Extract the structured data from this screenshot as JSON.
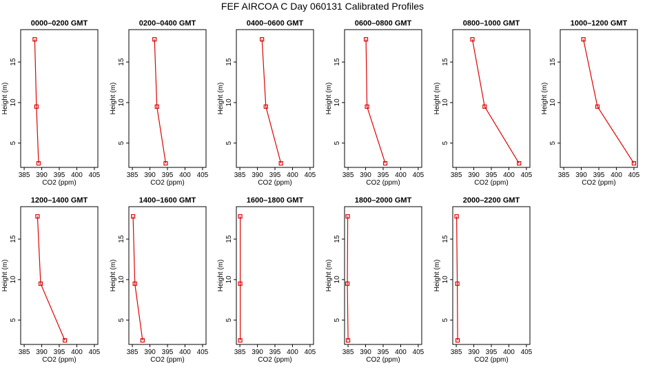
{
  "page": {
    "title": "FEF AIRCOA C  Day 060131  Calibrated Profiles"
  },
  "colors": {
    "series": "#dd0000",
    "axes": "#000000",
    "background": "#ffffff"
  },
  "chart_data": [
    {
      "type": "line",
      "title": "0000–0200 GMT",
      "xlabel": "CO2 (ppm)",
      "ylabel": "Height (m)",
      "xlim": [
        384,
        406
      ],
      "ylim": [
        2,
        19
      ],
      "xticks": [
        385,
        390,
        395,
        400,
        405
      ],
      "yticks": [
        5,
        10,
        15
      ],
      "points": [
        {
          "x": 388.0,
          "y": 17.8
        },
        {
          "x": 388.5,
          "y": 9.5
        },
        {
          "x": 389.1,
          "y": 2.5
        }
      ]
    },
    {
      "type": "line",
      "title": "0200–0400 GMT",
      "xlabel": "CO2 (ppm)",
      "ylabel": "Height (m)",
      "xlim": [
        384,
        406
      ],
      "ylim": [
        2,
        19
      ],
      "xticks": [
        385,
        390,
        395,
        400,
        405
      ],
      "yticks": [
        5,
        10,
        15
      ],
      "points": [
        {
          "x": 391.3,
          "y": 17.8
        },
        {
          "x": 392.0,
          "y": 9.5
        },
        {
          "x": 394.5,
          "y": 2.5
        }
      ]
    },
    {
      "type": "line",
      "title": "0400–0600 GMT",
      "xlabel": "CO2 (ppm)",
      "ylabel": "Height (m)",
      "xlim": [
        384,
        406
      ],
      "ylim": [
        2,
        19
      ],
      "xticks": [
        385,
        390,
        395,
        400,
        405
      ],
      "yticks": [
        5,
        10,
        15
      ],
      "points": [
        {
          "x": 391.3,
          "y": 17.8
        },
        {
          "x": 392.4,
          "y": 9.5
        },
        {
          "x": 396.7,
          "y": 2.5
        }
      ]
    },
    {
      "type": "line",
      "title": "0600–0800 GMT",
      "xlabel": "CO2 (ppm)",
      "ylabel": "Height (m)",
      "xlim": [
        384,
        406
      ],
      "ylim": [
        2,
        19
      ],
      "xticks": [
        385,
        390,
        395,
        400,
        405
      ],
      "yticks": [
        5,
        10,
        15
      ],
      "points": [
        {
          "x": 390.1,
          "y": 17.8
        },
        {
          "x": 390.4,
          "y": 9.5
        },
        {
          "x": 395.6,
          "y": 2.5
        }
      ]
    },
    {
      "type": "line",
      "title": "0800–1000 GMT",
      "xlabel": "CO2 (ppm)",
      "ylabel": "Height (m)",
      "xlim": [
        384,
        406
      ],
      "ylim": [
        2,
        19
      ],
      "xticks": [
        385,
        390,
        395,
        400,
        405
      ],
      "yticks": [
        5,
        10,
        15
      ],
      "points": [
        {
          "x": 389.6,
          "y": 17.8
        },
        {
          "x": 393.1,
          "y": 9.5
        },
        {
          "x": 402.9,
          "y": 2.5
        }
      ]
    },
    {
      "type": "line",
      "title": "1000–1200 GMT",
      "xlabel": "CO2 (ppm)",
      "ylabel": "Height (m)",
      "xlim": [
        384,
        406
      ],
      "ylim": [
        2,
        19
      ],
      "xticks": [
        385,
        390,
        395,
        400,
        405
      ],
      "yticks": [
        5,
        10,
        15
      ],
      "points": [
        {
          "x": 390.6,
          "y": 17.8
        },
        {
          "x": 394.6,
          "y": 9.5
        },
        {
          "x": 405.0,
          "y": 2.5
        }
      ]
    },
    {
      "type": "line",
      "title": "1200–1400 GMT",
      "xlabel": "CO2 (ppm)",
      "ylabel": "Height (m)",
      "xlim": [
        384,
        406
      ],
      "ylim": [
        2,
        19
      ],
      "xticks": [
        385,
        390,
        395,
        400,
        405
      ],
      "yticks": [
        5,
        10,
        15
      ],
      "points": [
        {
          "x": 388.8,
          "y": 17.8
        },
        {
          "x": 389.7,
          "y": 9.5
        },
        {
          "x": 396.6,
          "y": 2.5
        }
      ]
    },
    {
      "type": "line",
      "title": "1400–1600 GMT",
      "xlabel": "CO2 (ppm)",
      "ylabel": "Height (m)",
      "xlim": [
        384,
        406
      ],
      "ylim": [
        2,
        19
      ],
      "xticks": [
        385,
        390,
        395,
        400,
        405
      ],
      "yticks": [
        5,
        10,
        15
      ],
      "points": [
        {
          "x": 385.2,
          "y": 17.8
        },
        {
          "x": 385.7,
          "y": 9.5
        },
        {
          "x": 387.9,
          "y": 2.5
        }
      ]
    },
    {
      "type": "line",
      "title": "1600–1800 GMT",
      "xlabel": "CO2 (ppm)",
      "ylabel": "Height (m)",
      "xlim": [
        384,
        406
      ],
      "ylim": [
        2,
        19
      ],
      "xticks": [
        385,
        390,
        395,
        400,
        405
      ],
      "yticks": [
        5,
        10,
        15
      ],
      "points": [
        {
          "x": 385.1,
          "y": 17.8
        },
        {
          "x": 385.1,
          "y": 9.5
        },
        {
          "x": 385.1,
          "y": 2.5
        }
      ]
    },
    {
      "type": "line",
      "title": "1800–2000 GMT",
      "xlabel": "CO2 (ppm)",
      "ylabel": "Height (m)",
      "xlim": [
        384,
        406
      ],
      "ylim": [
        2,
        19
      ],
      "xticks": [
        385,
        390,
        395,
        400,
        405
      ],
      "yticks": [
        5,
        10,
        15
      ],
      "points": [
        {
          "x": 384.9,
          "y": 17.8
        },
        {
          "x": 384.8,
          "y": 9.5
        },
        {
          "x": 385.0,
          "y": 2.5
        }
      ]
    },
    {
      "type": "line",
      "title": "2000–2200 GMT",
      "xlabel": "CO2 (ppm)",
      "ylabel": "Height (m)",
      "xlim": [
        384,
        406
      ],
      "ylim": [
        2,
        19
      ],
      "xticks": [
        385,
        390,
        395,
        400,
        405
      ],
      "yticks": [
        5,
        10,
        15
      ],
      "points": [
        {
          "x": 385.1,
          "y": 17.8
        },
        {
          "x": 385.3,
          "y": 9.5
        },
        {
          "x": 385.4,
          "y": 2.5
        }
      ]
    }
  ]
}
